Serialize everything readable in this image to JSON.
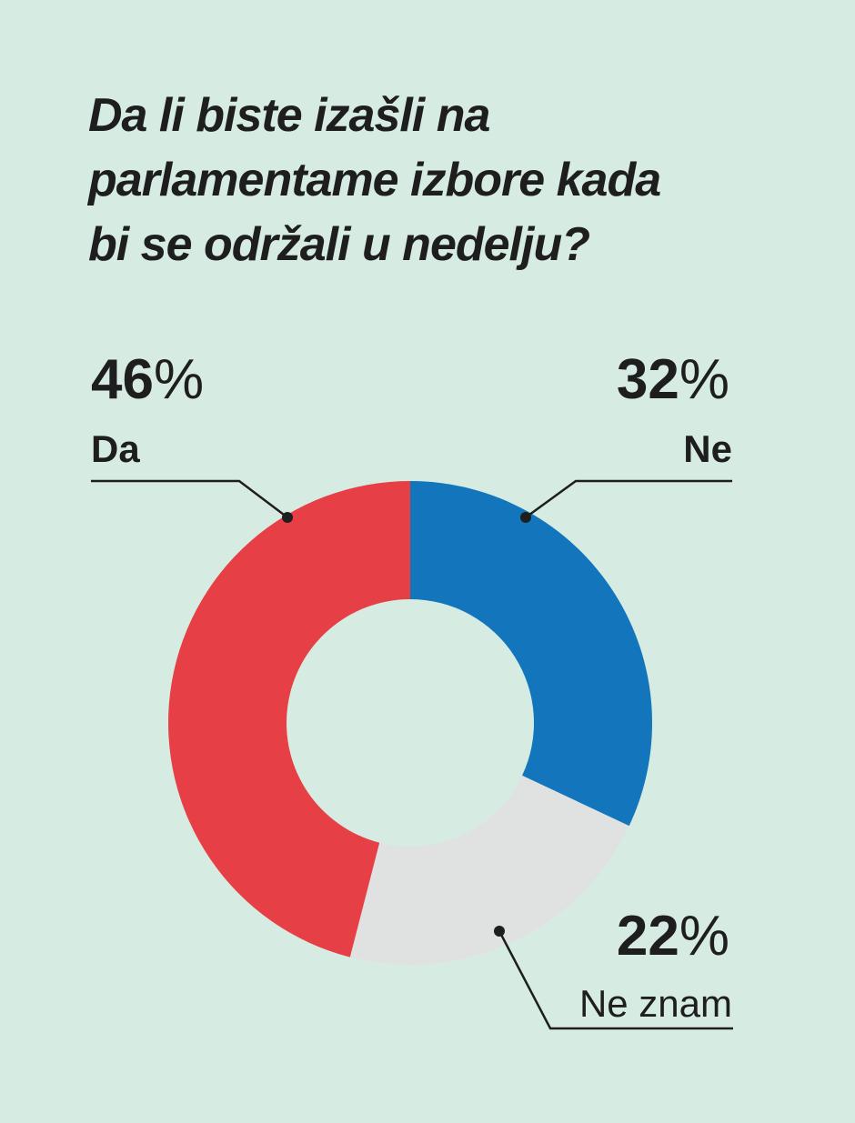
{
  "background_color": "#d6ece2",
  "title_lines": [
    "Da li biste izašli na",
    "parlamentame izbore kada",
    "bi se održali u nedelju?"
  ],
  "chart_data": {
    "type": "pie",
    "variant": "donut",
    "title": "Da li biste izašli na parlamentame izbore kada bi se održali u nedelju?",
    "unit": "%",
    "start": "top",
    "direction": "clockwise",
    "slices": [
      {
        "key": "ne",
        "label": "Ne",
        "value": 32,
        "value_label": "32%",
        "color": "#1376bd"
      },
      {
        "key": "ne_znam",
        "label": "Ne znam",
        "value": 22,
        "value_label": "22%",
        "color": "#e0e2e2"
      },
      {
        "key": "da",
        "label": "Da",
        "value": 46,
        "value_label": "46%",
        "color": "#e64046"
      }
    ]
  }
}
